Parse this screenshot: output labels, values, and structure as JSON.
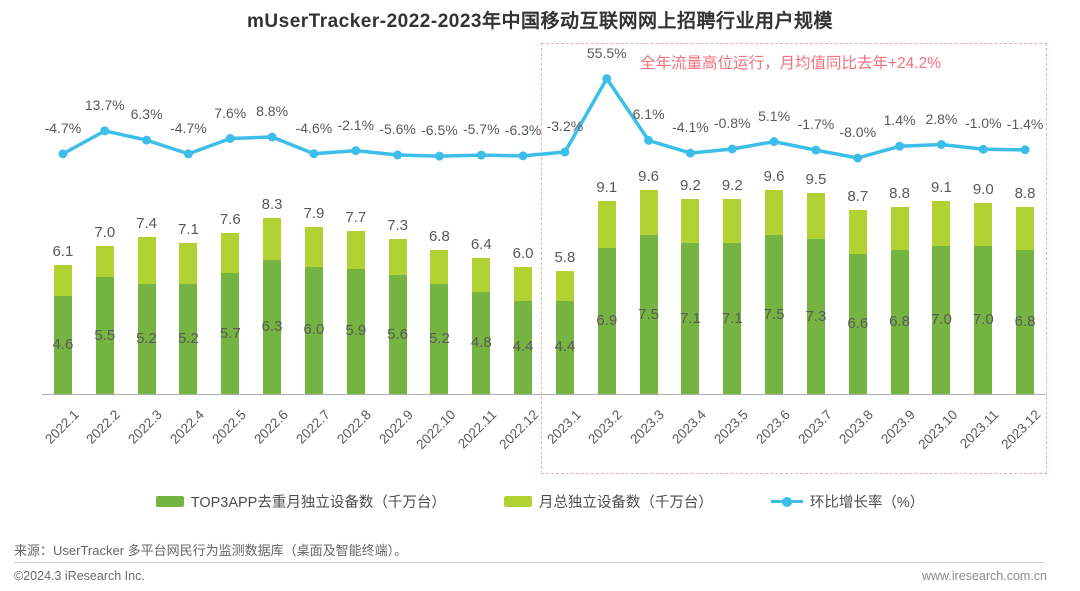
{
  "title": "mUserTracker-2022-2023年中国移动互联网网上招聘行业用户规模",
  "annotation": {
    "text": "全年流量高位运行，月均值同比去年+24.2%"
  },
  "legend": {
    "items": [
      {
        "label": "TOP3APP去重月独立设备数（千万台）",
        "type": "bar-swatch",
        "color": "#76b441"
      },
      {
        "label": "月总独立设备数（千万台）",
        "type": "bar-swatch",
        "color": "#b2d234"
      },
      {
        "label": "环比增长率（%）",
        "type": "line-marker",
        "color": "#3dbee9"
      }
    ]
  },
  "footer": {
    "source": "来源：UserTracker 多平台网民行为监测数据库（桌面及智能终端）。",
    "copyright": "©2024.3 iResearch Inc.",
    "website": "www.iresearch.com.cn"
  },
  "colors": {
    "top3_bar": "#76b441",
    "total_bar_cap": "#b2d234",
    "growth_line": "#3dbee9",
    "annotation_pink": "#f5717e",
    "highlight_border_pink": "#f0aeb3",
    "label_gray": "#595959",
    "title_gray": "#333333"
  },
  "chart_data": {
    "type": "bar",
    "combo": "stacked-bar-with-line",
    "title": "mUserTracker-2022-2023年中国移动互联网网上招聘行业用户规模",
    "categories": [
      "2022.1",
      "2022.2",
      "2022.3",
      "2022.4",
      "2022.5",
      "2022.6",
      "2022.7",
      "2022.8",
      "2022.9",
      "2022.10",
      "2022.11",
      "2022.12",
      "2023.1",
      "2023.2",
      "2023.3",
      "2023.4",
      "2023.5",
      "2023.6",
      "2023.7",
      "2023.8",
      "2023.9",
      "2023.10",
      "2023.11",
      "2023.12"
    ],
    "series": [
      {
        "name": "TOP3APP去重月独立设备数（千万台）",
        "type": "bar",
        "color": "#76b441",
        "values": [
          4.6,
          5.5,
          5.2,
          5.2,
          5.7,
          6.3,
          6.0,
          5.9,
          5.6,
          5.2,
          4.8,
          4.4,
          4.4,
          6.9,
          7.5,
          7.1,
          7.1,
          7.5,
          7.3,
          6.6,
          6.8,
          7.0,
          7.0,
          6.8
        ]
      },
      {
        "name": "月总独立设备数（千万台）",
        "type": "bar-total",
        "color": "#b2d234",
        "note": "full bar height; light-green cap segment = total minus TOP3",
        "values": [
          6.1,
          7.0,
          7.4,
          7.1,
          7.6,
          8.3,
          7.9,
          7.7,
          7.3,
          6.8,
          6.4,
          6.0,
          5.8,
          9.1,
          9.6,
          9.2,
          9.2,
          9.6,
          9.5,
          8.7,
          8.8,
          9.1,
          9.0,
          8.8
        ]
      },
      {
        "name": "环比增长率（%）",
        "type": "line",
        "color": "#3dbee9",
        "unit": "%",
        "values": [
          -4.7,
          13.7,
          6.3,
          -4.7,
          7.6,
          8.8,
          -4.6,
          -2.1,
          -5.6,
          -6.5,
          -5.7,
          -6.3,
          -3.2,
          55.5,
          6.1,
          -4.1,
          -0.8,
          5.1,
          -1.7,
          -8.0,
          1.4,
          2.8,
          -1.0,
          -1.4
        ]
      }
    ],
    "annotation": "全年流量高位运行，月均值同比去年+24.2%",
    "highlight_region": {
      "from": "2023.1",
      "to": "2023.12",
      "style": "pink-dashed-box"
    },
    "ylim_bars": [
      0,
      10
    ],
    "grid": false,
    "legend_position": "bottom"
  }
}
